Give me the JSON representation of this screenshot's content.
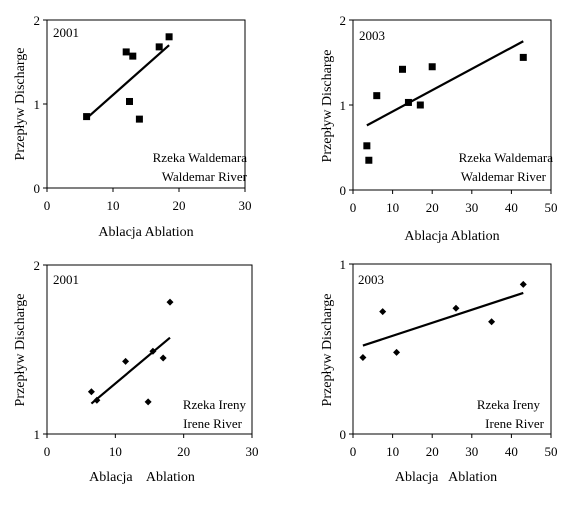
{
  "chart_data": [
    {
      "type": "scatter",
      "marker": "square",
      "year_label": "2001",
      "legend_lines": [
        "Rzeka Waldemara",
        "Waldemar River"
      ],
      "xlabel": "Ablacja  Ablation",
      "ylabel": "Przepływ Discharge",
      "xlim": [
        0,
        30
      ],
      "ylim": [
        0,
        2
      ],
      "xticks": [
        "0",
        "10",
        "20",
        "30"
      ],
      "yticks": [
        "0",
        "1",
        "2"
      ],
      "points": [
        {
          "x": 6.0,
          "y": 0.85
        },
        {
          "x": 12.0,
          "y": 1.62
        },
        {
          "x": 13.0,
          "y": 1.57
        },
        {
          "x": 12.5,
          "y": 1.03
        },
        {
          "x": 14.0,
          "y": 0.82
        },
        {
          "x": 17.0,
          "y": 1.68
        },
        {
          "x": 18.5,
          "y": 1.8
        }
      ],
      "trendline": {
        "x1": 6.0,
        "y1": 0.83,
        "x2": 18.5,
        "y2": 1.7
      }
    },
    {
      "type": "scatter",
      "marker": "square",
      "year_label": "2003",
      "legend_lines": [
        "Rzeka Waldemara",
        "Waldemar River"
      ],
      "xlabel": "Ablacja  Ablation",
      "ylabel": "Przepływ Discharge",
      "xlim": [
        0,
        50
      ],
      "ylim": [
        0,
        2
      ],
      "xticks": [
        "0",
        "10",
        "20",
        "30",
        "40",
        "50"
      ],
      "yticks": [
        "0",
        "1",
        "2"
      ],
      "points": [
        {
          "x": 3.5,
          "y": 0.52
        },
        {
          "x": 4.0,
          "y": 0.35
        },
        {
          "x": 6.0,
          "y": 1.11
        },
        {
          "x": 12.5,
          "y": 1.42
        },
        {
          "x": 14.0,
          "y": 1.03
        },
        {
          "x": 17.0,
          "y": 1.0
        },
        {
          "x": 20.0,
          "y": 1.45
        },
        {
          "x": 43.0,
          "y": 1.56
        }
      ],
      "trendline": {
        "x1": 3.5,
        "y1": 0.76,
        "x2": 43.0,
        "y2": 1.75
      }
    },
    {
      "type": "scatter",
      "marker": "diamond",
      "year_label": "2001",
      "legend_lines": [
        "Rzeka Ireny",
        "Irene River"
      ],
      "xlabel": "Ablacja    Ablation",
      "ylabel": "Przepływ Discharge",
      "xlim": [
        0,
        30
      ],
      "ylim": [
        1,
        2
      ],
      "xticks": [
        "0",
        "10",
        "20",
        "30"
      ],
      "yticks": [
        "1",
        "2"
      ],
      "points": [
        {
          "x": 6.5,
          "y": 1.25
        },
        {
          "x": 7.3,
          "y": 1.2
        },
        {
          "x": 11.5,
          "y": 1.43
        },
        {
          "x": 14.8,
          "y": 1.19
        },
        {
          "x": 15.5,
          "y": 1.49
        },
        {
          "x": 17.0,
          "y": 1.45
        },
        {
          "x": 18.0,
          "y": 1.78
        }
      ],
      "trendline": {
        "x1": 6.5,
        "y1": 1.18,
        "x2": 18.0,
        "y2": 1.57
      }
    },
    {
      "type": "scatter",
      "marker": "diamond",
      "year_label": "2003",
      "legend_lines": [
        "Rzeka Ireny",
        "Irene River"
      ],
      "xlabel": "Ablacja   Ablation",
      "ylabel": "Przepływ Discharge",
      "xlim": [
        0,
        50
      ],
      "ylim": [
        0,
        1
      ],
      "xticks": [
        "0",
        "10",
        "20",
        "30",
        "40",
        "50"
      ],
      "yticks": [
        "0",
        "1"
      ],
      "points": [
        {
          "x": 2.5,
          "y": 0.45
        },
        {
          "x": 7.5,
          "y": 0.72
        },
        {
          "x": 11.0,
          "y": 0.48
        },
        {
          "x": 26.0,
          "y": 0.74
        },
        {
          "x": 35.0,
          "y": 0.66
        },
        {
          "x": 43.0,
          "y": 0.88
        }
      ],
      "trendline": {
        "x1": 2.5,
        "y1": 0.52,
        "x2": 43.0,
        "y2": 0.83
      }
    }
  ]
}
